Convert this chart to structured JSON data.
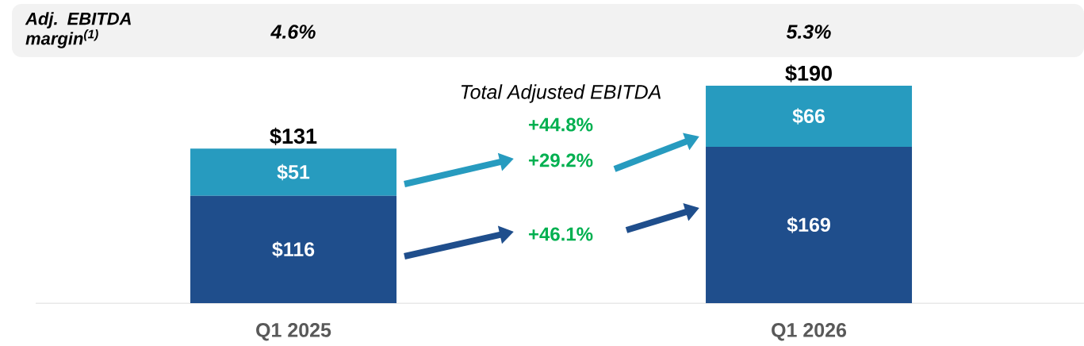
{
  "chart_data": {
    "type": "bar",
    "stacked": true,
    "categories": [
      "Q1 2025",
      "Q1 2026"
    ],
    "series": [
      {
        "color": "#1f4e8c",
        "values": [
          116,
          169
        ],
        "value_labels": [
          "$116",
          "$169"
        ]
      },
      {
        "color": "#279bbf",
        "values": [
          51,
          66
        ],
        "value_labels": [
          "$51",
          "$66"
        ]
      }
    ],
    "annotations": [
      "Adj. EBITDA margin$^{(1)}$",
      "4.6%",
      "5.3%",
      "Total Adjusted EBITDA",
      "+44.8%",
      "+29.2%",
      "+46.1%",
      {
        "text": "$131",
        "x": "Q1 2025",
        "y": 167
      },
      {
        "text": "$190",
        "x": "Q1 2026",
        "y": 235
      }
    ]
  }
}
